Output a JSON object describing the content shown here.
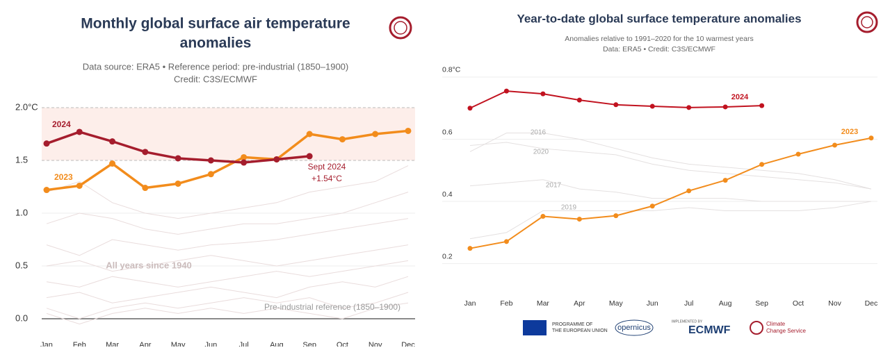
{
  "chart_data": [
    {
      "type": "line",
      "title": [
        "Monthly global surface air temperature",
        "anomalies"
      ],
      "subtitle": [
        "Data source: ERA5 • Reference period: pre-industrial (1850–1900)",
        "Credit: C3S/ECMWF"
      ],
      "categories": [
        "Jan",
        "Feb",
        "Mar",
        "Apr",
        "May",
        "Jun",
        "Jul",
        "Aug",
        "Sep",
        "Oct",
        "Nov",
        "Dec"
      ],
      "series": [
        {
          "name": "2023",
          "color": "#f28c1c",
          "values": [
            1.22,
            1.26,
            1.47,
            1.24,
            1.28,
            1.37,
            1.53,
            1.51,
            1.75,
            1.7,
            1.75,
            1.78
          ]
        },
        {
          "name": "2024",
          "color": "#a51d2d",
          "values": [
            1.66,
            1.77,
            1.68,
            1.58,
            1.52,
            1.5,
            1.48,
            1.51,
            1.54,
            null,
            null,
            null
          ]
        }
      ],
      "background_color": "#e9dcdc",
      "background_values": [
        [
          1.2,
          1.3,
          1.1,
          1.0,
          0.95,
          1.0,
          1.05,
          1.1,
          1.2,
          1.25,
          1.3,
          1.45
        ],
        [
          0.9,
          1.0,
          0.95,
          0.85,
          0.8,
          0.85,
          0.9,
          0.9,
          0.95,
          1.0,
          1.1,
          1.2
        ],
        [
          0.7,
          0.6,
          0.75,
          0.7,
          0.65,
          0.7,
          0.72,
          0.75,
          0.8,
          0.85,
          0.9,
          0.95
        ],
        [
          0.5,
          0.55,
          0.45,
          0.5,
          0.55,
          0.6,
          0.55,
          0.5,
          0.55,
          0.6,
          0.65,
          0.7
        ],
        [
          0.35,
          0.3,
          0.4,
          0.35,
          0.3,
          0.35,
          0.4,
          0.45,
          0.4,
          0.45,
          0.5,
          0.55
        ],
        [
          0.2,
          0.25,
          0.15,
          0.2,
          0.25,
          0.3,
          0.25,
          0.2,
          0.3,
          0.35,
          0.3,
          0.4
        ],
        [
          0.1,
          0.0,
          0.1,
          0.15,
          0.1,
          0.15,
          0.2,
          0.15,
          0.2,
          0.1,
          0.15,
          0.25
        ],
        [
          0.05,
          -0.05,
          0.05,
          0.1,
          0.05,
          0.1,
          0.05,
          0.1,
          0.05,
          0.0,
          0.1,
          0.15
        ]
      ],
      "band": [
        1.5,
        2.0
      ],
      "ylim": [
        0,
        2.0
      ],
      "yticks": [
        {
          "value": 0,
          "label": "0.0"
        },
        0.5,
        {
          "value": 1,
          "label": "1.0"
        },
        1.5,
        {
          "value": 2,
          "label": "2.0°C"
        }
      ],
      "annotations": [
        "2024",
        "2023",
        "Sept 2024",
        "+1.54°C",
        "All years since 1940",
        "Pre-industrial reference (1850–1900)"
      ]
    },
    {
      "type": "line",
      "title": [
        "Year-to-date global surface temperature anomalies"
      ],
      "subtitle": [
        "Anomalies relative to 1991–2020 for the 10 warmest years",
        "Data: ERA5 • Credit: C3S/ECMWF"
      ],
      "categories": [
        "Jan",
        "Feb",
        "Mar",
        "Apr",
        "May",
        "Jun",
        "Jul",
        "Aug",
        "Sep",
        "Oct",
        "Nov",
        "Dec"
      ],
      "series": [
        {
          "name": "2016",
          "color": "#e4e0e0",
          "values": [
            0.56,
            0.62,
            0.62,
            0.6,
            0.57,
            0.54,
            0.52,
            0.51,
            0.5,
            0.49,
            0.47,
            0.44
          ]
        },
        {
          "name": "2020",
          "color": "#e4e0e0",
          "values": [
            0.58,
            0.59,
            0.57,
            0.56,
            0.55,
            0.52,
            0.5,
            0.49,
            0.48,
            0.47,
            0.46,
            0.44
          ]
        },
        {
          "name": "2017",
          "color": "#e4e0e0",
          "values": [
            0.45,
            0.46,
            0.47,
            0.44,
            0.43,
            0.41,
            0.41,
            0.41,
            0.4,
            0.4,
            0.4,
            0.4
          ]
        },
        {
          "name": "2019",
          "color": "#e4e0e0",
          "values": [
            0.28,
            0.3,
            0.37,
            0.37,
            0.37,
            0.37,
            0.38,
            0.37,
            0.37,
            0.37,
            0.38,
            0.4
          ]
        },
        {
          "name": "2023",
          "color": "#f28c1c",
          "values": [
            0.249,
            0.271,
            0.352,
            0.343,
            0.354,
            0.385,
            0.434,
            0.468,
            0.519,
            0.552,
            0.581,
            0.604
          ]
        },
        {
          "name": "2024",
          "color": "#c1121f",
          "values": [
            0.7,
            0.755,
            0.746,
            0.726,
            0.711,
            0.706,
            0.702,
            0.704,
            0.708,
            null,
            null,
            null
          ]
        }
      ],
      "ylim": [
        0.15,
        0.82
      ],
      "yticks": [
        0.2,
        0.4,
        0.6,
        {
          "value": 0.8,
          "label": "0.8°C"
        }
      ]
    }
  ],
  "footer": {
    "eu": [
      "PROGRAMME OF",
      "THE EUROPEAN UNION"
    ],
    "copernicus": "opernicus",
    "implemented": "IMPLEMENTED BY",
    "ecmwf": "ECMWF",
    "c3s": [
      "Climate",
      "Change Service"
    ]
  }
}
